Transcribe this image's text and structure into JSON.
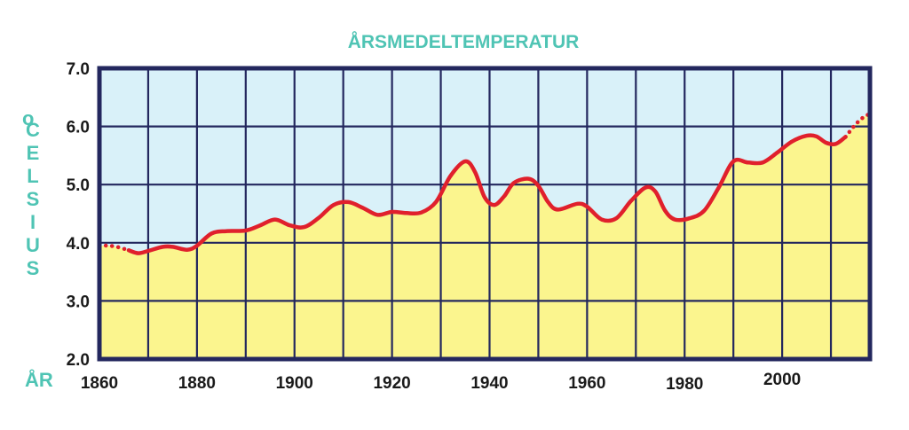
{
  "chart_data": {
    "type": "line",
    "title": "ÅRSMEDELTEMPERATUR",
    "ylabel_degree": "o",
    "ylabel": "CELSIUS",
    "xlabel": "ÅR",
    "xlim": [
      1860,
      2018
    ],
    "ylim": [
      2.0,
      7.0
    ],
    "yticks": [
      "2.0",
      "3.0",
      "4.0",
      "5.0",
      "6.0",
      "7.0"
    ],
    "xticks": [
      "1860",
      "1880",
      "1900",
      "1920",
      "1940",
      "1960",
      "1980",
      "2000"
    ],
    "grid": true,
    "colors": {
      "above_line": "#d9f1f9",
      "below_line": "#fbf58e",
      "line": "#e0202c",
      "grid": "#23275e",
      "axis_text": "#4fc4b4"
    },
    "series": [
      {
        "dotted_start": [
          [
            1860,
            3.95
          ],
          [
            1862,
            3.95
          ],
          [
            1864,
            3.92
          ],
          [
            1866,
            3.87
          ]
        ],
        "solid": [
          [
            1866,
            3.87
          ],
          [
            1868,
            3.82
          ],
          [
            1870,
            3.86
          ],
          [
            1873,
            3.93
          ],
          [
            1875,
            3.93
          ],
          [
            1878,
            3.88
          ],
          [
            1880,
            3.95
          ],
          [
            1883,
            4.16
          ],
          [
            1886,
            4.2
          ],
          [
            1890,
            4.21
          ],
          [
            1893,
            4.3
          ],
          [
            1896,
            4.4
          ],
          [
            1899,
            4.3
          ],
          [
            1902,
            4.27
          ],
          [
            1905,
            4.43
          ],
          [
            1908,
            4.65
          ],
          [
            1911,
            4.7
          ],
          [
            1914,
            4.6
          ],
          [
            1917,
            4.48
          ],
          [
            1920,
            4.53
          ],
          [
            1923,
            4.51
          ],
          [
            1926,
            4.52
          ],
          [
            1929,
            4.7
          ],
          [
            1932,
            5.15
          ],
          [
            1935,
            5.4
          ],
          [
            1937,
            5.22
          ],
          [
            1939,
            4.78
          ],
          [
            1941,
            4.65
          ],
          [
            1943,
            4.8
          ],
          [
            1945,
            5.03
          ],
          [
            1948,
            5.1
          ],
          [
            1950,
            4.98
          ],
          [
            1952,
            4.7
          ],
          [
            1954,
            4.57
          ],
          [
            1958,
            4.67
          ],
          [
            1960,
            4.62
          ],
          [
            1963,
            4.4
          ],
          [
            1966,
            4.42
          ],
          [
            1969,
            4.72
          ],
          [
            1972,
            4.95
          ],
          [
            1974,
            4.88
          ],
          [
            1976,
            4.55
          ],
          [
            1978,
            4.4
          ],
          [
            1981,
            4.42
          ],
          [
            1984,
            4.55
          ],
          [
            1987,
            4.95
          ],
          [
            1990,
            5.4
          ],
          [
            1993,
            5.38
          ],
          [
            1996,
            5.38
          ],
          [
            1999,
            5.55
          ],
          [
            2002,
            5.74
          ],
          [
            2005,
            5.84
          ],
          [
            2007,
            5.83
          ],
          [
            2009,
            5.72
          ],
          [
            2011,
            5.7
          ],
          [
            2013,
            5.82
          ]
        ],
        "dotted_end": [
          [
            2013,
            5.82
          ],
          [
            2015,
            6.03
          ],
          [
            2017,
            6.18
          ],
          [
            2018,
            6.2
          ]
        ]
      }
    ]
  }
}
